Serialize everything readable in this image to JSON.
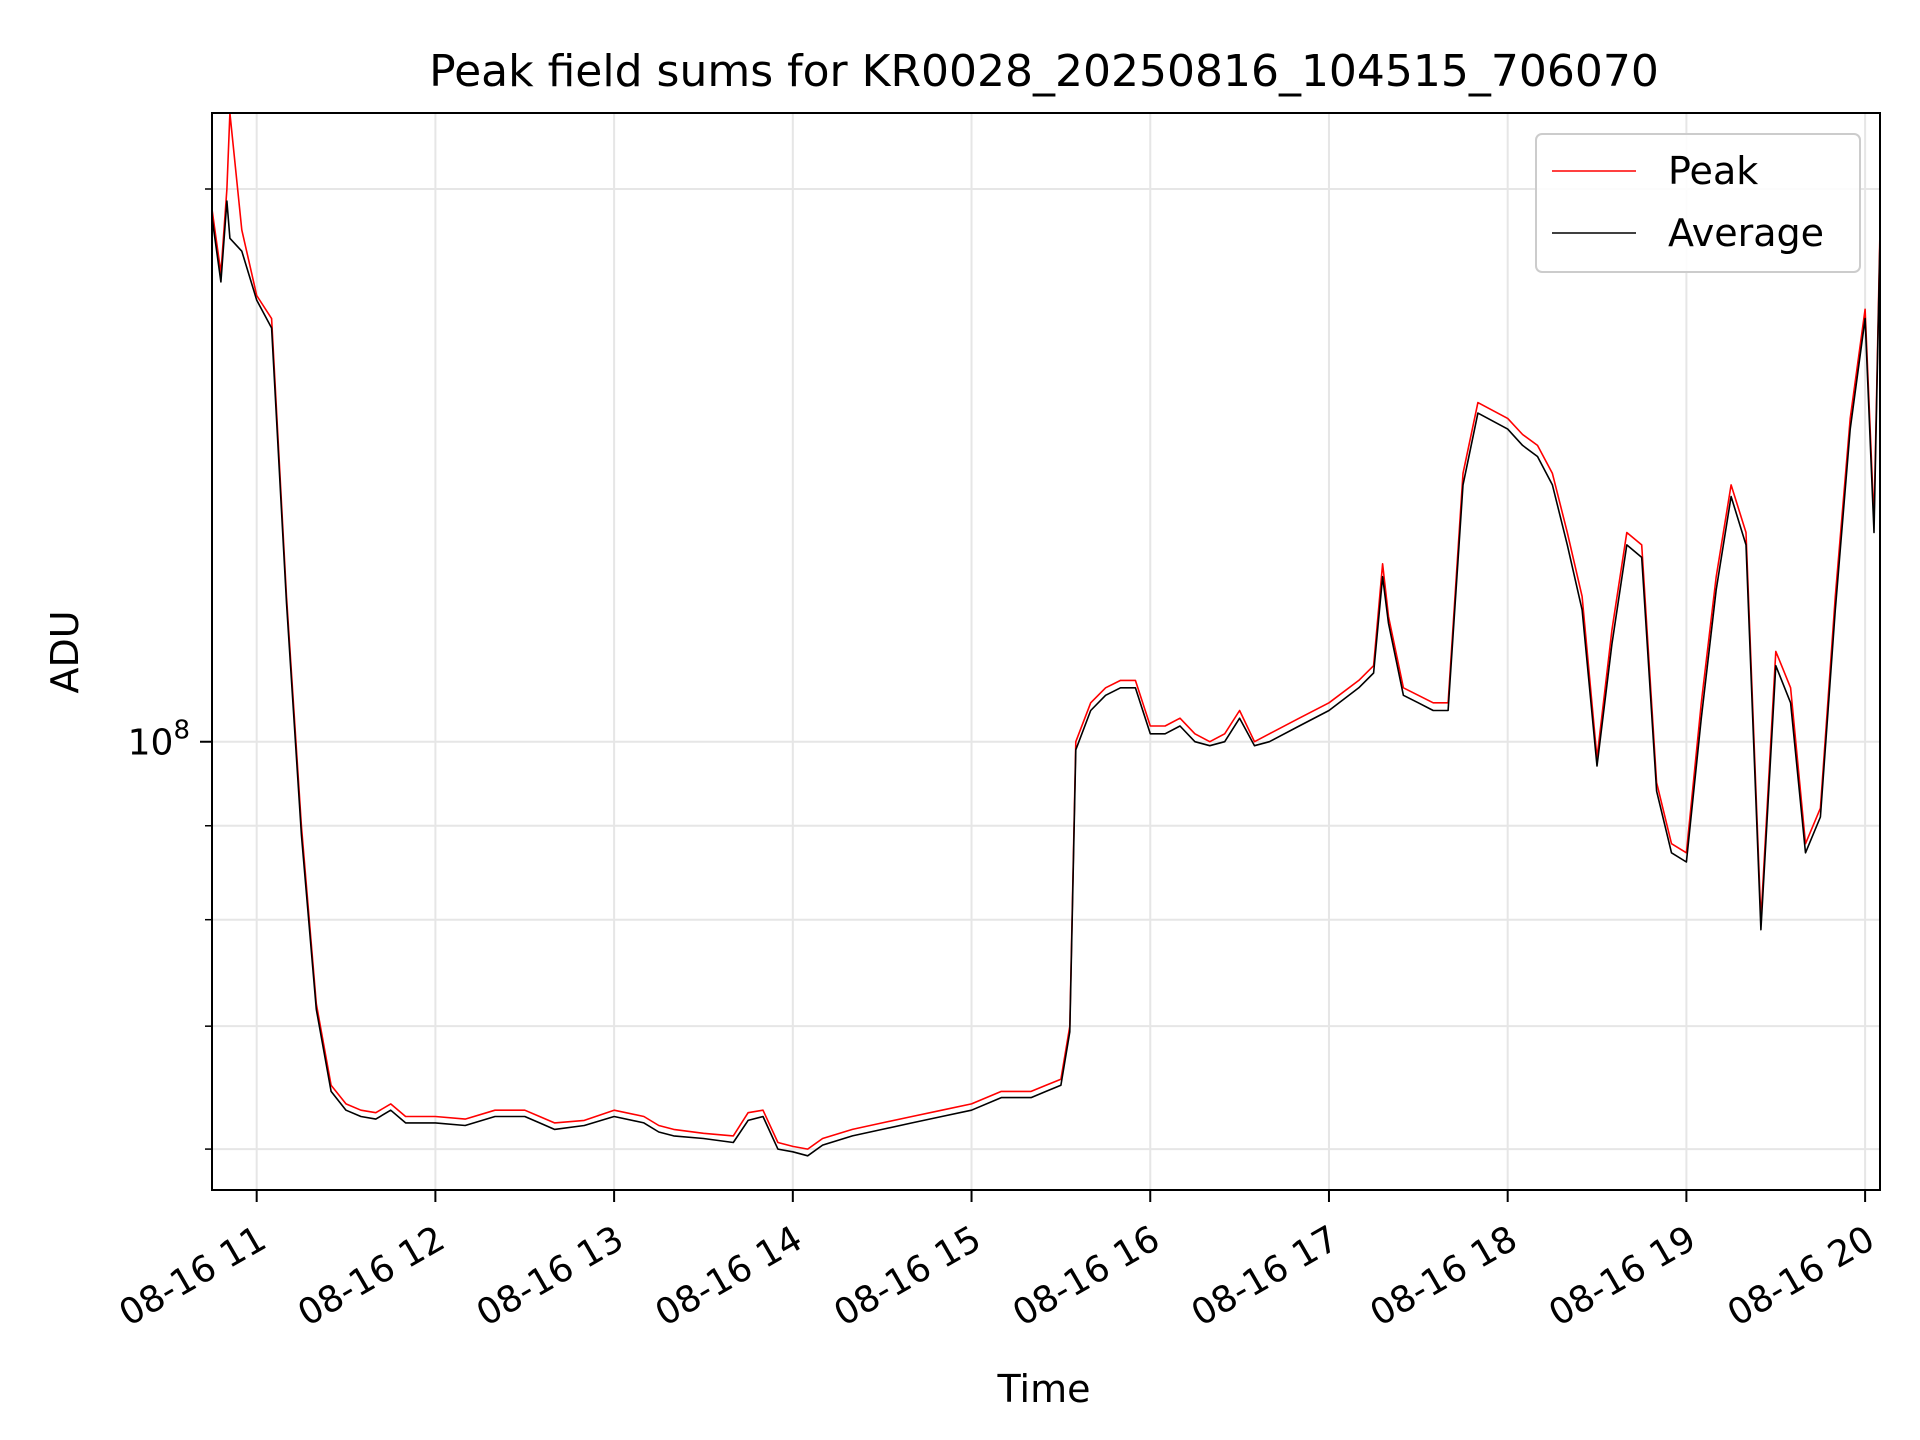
{
  "chart_data": {
    "type": "line",
    "title": "Peak field sums for KR0028_20250816_104515_706070",
    "xlabel": "Time",
    "ylabel": "ADU",
    "yscale": "log",
    "xlim": [
      "2025-08-16T10:45",
      "2025-08-16T20:05"
    ],
    "ylim": [
      57000000.0,
      220000000.0
    ],
    "grid": true,
    "legend_position": "top-right",
    "x_tick_labels": [
      "08-16 11",
      "08-16 12",
      "08-16 13",
      "08-16 14",
      "08-16 15",
      "08-16 16",
      "08-16 17",
      "08-16 18",
      "08-16 19",
      "08-16 20"
    ],
    "y_tick_label": {
      "base": "10",
      "exp": "8"
    },
    "x": [
      "10:45",
      "10:48",
      "10:50",
      "10:51",
      "10:55",
      "11:00",
      "11:05",
      "11:10",
      "11:15",
      "11:20",
      "11:25",
      "11:30",
      "11:35",
      "11:40",
      "11:45",
      "11:50",
      "11:55",
      "12:00",
      "12:10",
      "12:20",
      "12:30",
      "12:35",
      "12:40",
      "12:50",
      "13:00",
      "13:10",
      "13:15",
      "13:20",
      "13:30",
      "13:40",
      "13:45",
      "13:50",
      "13:55",
      "14:00",
      "14:05",
      "14:10",
      "14:20",
      "14:30",
      "14:40",
      "14:50",
      "15:00",
      "15:10",
      "15:20",
      "15:25",
      "15:30",
      "15:33",
      "15:35",
      "15:40",
      "15:45",
      "15:50",
      "15:55",
      "16:00",
      "16:05",
      "16:10",
      "16:15",
      "16:20",
      "16:25",
      "16:30",
      "16:35",
      "16:40",
      "16:50",
      "17:00",
      "17:10",
      "17:15",
      "17:18",
      "17:20",
      "17:25",
      "17:30",
      "17:35",
      "17:40",
      "17:45",
      "17:50",
      "18:00",
      "18:05",
      "18:10",
      "18:15",
      "18:20",
      "18:25",
      "18:30",
      "18:35",
      "18:40",
      "18:45",
      "18:50",
      "18:55",
      "19:00",
      "19:05",
      "19:10",
      "19:15",
      "19:20",
      "19:25",
      "19:30",
      "19:35",
      "19:40",
      "19:45",
      "19:50",
      "19:55",
      "20:00",
      "20:03",
      "20:05"
    ],
    "series": [
      {
        "name": "Peak",
        "color": "#ff0000",
        "values": [
          195000000.0,
          180000000.0,
          200000000.0,
          220000000.0,
          190000000.0,
          175000000.0,
          170000000.0,
          120000000.0,
          90000000.0,
          72000000.0,
          65000000.0,
          63500000.0,
          63000000.0,
          62800000.0,
          63500000.0,
          62500000.0,
          62500000.0,
          62500000.0,
          62300000.0,
          63000000.0,
          63000000.0,
          62500000.0,
          62000000.0,
          62200000.0,
          63000000.0,
          62500000.0,
          61800000.0,
          61500000.0,
          61200000.0,
          61000000.0,
          62800000.0,
          63000000.0,
          60500000.0,
          60200000.0,
          60000000.0,
          60800000.0,
          61500000.0,
          62000000.0,
          62500000.0,
          63000000.0,
          63500000.0,
          64500000.0,
          64500000.0,
          65000000.0,
          65500000.0,
          70000000.0,
          100000000.0,
          105000000.0,
          107000000.0,
          108000000.0,
          108000000.0,
          102000000.0,
          102000000.0,
          103000000.0,
          101000000.0,
          100000000.0,
          101000000.0,
          104000000.0,
          100000000.0,
          101000000.0,
          103000000.0,
          105000000.0,
          108000000.0,
          110000000.0,
          125000000.0,
          117000000.0,
          107000000.0,
          106000000.0,
          105000000.0,
          105000000.0,
          140000000.0,
          153000000.0,
          150000000.0,
          147000000.0,
          145000000.0,
          140000000.0,
          130000000.0,
          120000000.0,
          98000000.0,
          115000000.0,
          130000000.0,
          128000000.0,
          95000000.0,
          88000000.0,
          87000000.0,
          105000000.0,
          123000000.0,
          138000000.0,
          130000000.0,
          80000000.0,
          112000000.0,
          107000000.0,
          88000000.0,
          92000000.0,
          120000000.0,
          150000000.0,
          172000000.0,
          132000000.0,
          190000000.0
        ]
      },
      {
        "name": "Average",
        "color": "#000000",
        "values": [
          193000000.0,
          178000000.0,
          197000000.0,
          188000000.0,
          185000000.0,
          174000000.0,
          168000000.0,
          119000000.0,
          89000000.0,
          71500000.0,
          64500000.0,
          63000000.0,
          62500000.0,
          62300000.0,
          63000000.0,
          62000000.0,
          62000000.0,
          62000000.0,
          61800000.0,
          62500000.0,
          62500000.0,
          62000000.0,
          61500000.0,
          61800000.0,
          62500000.0,
          62000000.0,
          61300000.0,
          61000000.0,
          60800000.0,
          60500000.0,
          62200000.0,
          62500000.0,
          60000000.0,
          59800000.0,
          59500000.0,
          60300000.0,
          61000000.0,
          61500000.0,
          62000000.0,
          62500000.0,
          63000000.0,
          64000000.0,
          64000000.0,
          64500000.0,
          65000000.0,
          69500000.0,
          99000000.0,
          104000000.0,
          106000000.0,
          107000000.0,
          107000000.0,
          101000000.0,
          101000000.0,
          102000000.0,
          100000000.0,
          99500000.0,
          100000000.0,
          103000000.0,
          99500000.0,
          100000000.0,
          102000000.0,
          104000000.0,
          107000000.0,
          109000000.0,
          123000000.0,
          116000000.0,
          106000000.0,
          105000000.0,
          104000000.0,
          104000000.0,
          138000000.0,
          151000000.0,
          148000000.0,
          145000000.0,
          143000000.0,
          138000000.0,
          128000000.0,
          118000000.0,
          97000000.0,
          113000000.0,
          128000000.0,
          126000000.0,
          94000000.0,
          87000000.0,
          86000000.0,
          103000000.0,
          121000000.0,
          136000000.0,
          128000000.0,
          79000000.0,
          110000000.0,
          105000000.0,
          87000000.0,
          91000000.0,
          118000000.0,
          148000000.0,
          170000000.0,
          130000000.0,
          188000000.0
        ]
      }
    ]
  }
}
